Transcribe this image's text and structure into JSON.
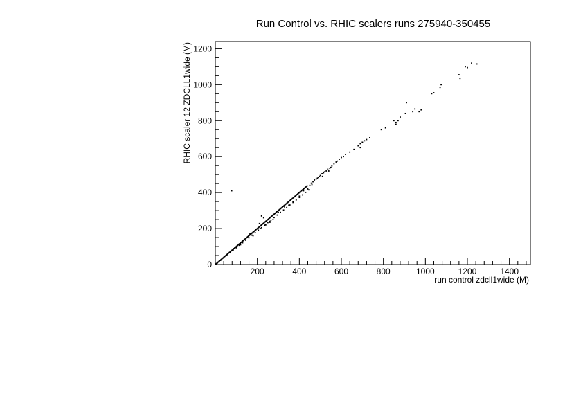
{
  "chart_data": {
    "type": "scatter",
    "title": "Run Control vs. RHIC scalers runs 275940-350455",
    "xlabel": "run control zdcll1wide (M)",
    "ylabel": "RHIC scaler 12 ZDCLL1wide (M)",
    "xlim": [
      0,
      1500
    ],
    "ylim": [
      0,
      1240
    ],
    "x_ticks": [
      200,
      400,
      600,
      800,
      1000,
      1200,
      1400
    ],
    "x_tick_labels": [
      "200",
      "400",
      "600",
      "800",
      "1000",
      "1200",
      "1400"
    ],
    "y_ticks": [
      0,
      200,
      400,
      600,
      800,
      1000,
      1200
    ],
    "y_tick_labels": [
      "0",
      "200",
      "400",
      "600",
      "800",
      "1000",
      "1200"
    ],
    "grid": false,
    "legend": "none",
    "marker_color": "#000000",
    "series": [
      {
        "x": [
          2,
          5,
          8,
          11,
          14,
          17,
          20,
          23,
          26,
          29,
          32,
          35,
          38,
          41,
          44,
          47,
          50,
          53,
          56,
          59,
          62,
          65,
          68,
          71,
          74,
          77,
          80,
          83,
          86,
          89,
          92,
          95,
          98,
          101,
          104,
          107,
          110,
          113,
          116,
          119,
          122,
          125,
          128,
          131,
          134,
          137,
          140,
          143,
          146,
          149,
          152,
          155,
          158,
          161,
          164,
          167,
          170,
          173,
          176,
          179,
          182,
          185,
          188,
          191,
          194,
          197,
          200,
          203,
          206,
          209,
          212,
          215,
          218,
          221,
          224,
          227,
          230,
          233,
          236,
          239,
          242,
          245,
          248,
          251,
          254,
          257,
          260,
          263,
          266,
          269,
          272,
          275,
          278,
          281,
          284,
          287,
          290,
          293,
          296,
          299,
          302,
          305,
          308,
          311,
          314,
          317,
          320,
          323,
          326,
          329,
          332,
          335,
          338,
          341,
          344,
          347,
          350,
          353,
          356,
          359,
          362,
          365,
          368,
          371,
          374,
          377,
          380,
          383,
          386,
          389,
          392,
          395,
          398,
          401,
          404,
          407,
          410,
          413,
          416,
          419,
          422,
          425,
          428,
          431,
          434,
          437,
          10,
          25,
          40,
          55,
          70,
          85,
          100,
          115,
          130,
          145,
          160,
          175,
          190,
          205,
          220,
          235,
          250,
          265,
          280,
          295,
          310,
          325,
          340,
          355,
          370,
          385,
          400,
          415,
          430,
          445,
          450,
          457,
          465,
          472,
          480,
          486,
          490,
          495,
          500,
          508,
          515,
          520,
          528,
          535,
          545,
          550,
          555,
          565,
          575,
          580,
          590,
          600,
          610,
          620,
          640,
          660,
          680,
          690,
          700,
          710,
          720,
          735,
          790,
          810,
          850,
          860,
          870,
          880,
          905,
          910,
          940,
          950,
          970,
          980,
          1030,
          1040,
          1070,
          1075,
          1160,
          1165,
          1190,
          1200,
          1220,
          1245,
          78,
          220,
          230,
          210,
          165,
          215,
          180,
          260,
          300,
          330,
          400,
          420,
          540,
          510,
          700,
          860,
          690,
          120,
          240,
          260,
          275,
          310,
          350,
          370,
          440,
          460
        ],
        "y": [
          2,
          5,
          8,
          11,
          14,
          17,
          20,
          23,
          26,
          29,
          32,
          35,
          38,
          41,
          44,
          47,
          50,
          53,
          56,
          59,
          62,
          65,
          68,
          71,
          74,
          77,
          80,
          83,
          86,
          89,
          92,
          95,
          98,
          101,
          104,
          107,
          110,
          113,
          116,
          119,
          122,
          125,
          128,
          131,
          134,
          137,
          140,
          143,
          146,
          149,
          152,
          155,
          158,
          161,
          164,
          167,
          170,
          173,
          176,
          179,
          182,
          185,
          188,
          191,
          194,
          197,
          200,
          203,
          206,
          209,
          212,
          215,
          218,
          221,
          224,
          227,
          230,
          233,
          236,
          239,
          242,
          245,
          248,
          251,
          254,
          257,
          260,
          263,
          266,
          269,
          272,
          275,
          278,
          281,
          284,
          287,
          290,
          293,
          296,
          299,
          302,
          305,
          308,
          311,
          314,
          317,
          320,
          323,
          326,
          329,
          332,
          335,
          338,
          341,
          344,
          347,
          350,
          353,
          356,
          359,
          362,
          365,
          368,
          371,
          374,
          377,
          380,
          383,
          386,
          389,
          392,
          395,
          398,
          401,
          404,
          407,
          410,
          413,
          416,
          419,
          422,
          425,
          428,
          431,
          434,
          437,
          9,
          23,
          37,
          51,
          65,
          79,
          93,
          107,
          121,
          135,
          149,
          163,
          177,
          191,
          205,
          219,
          233,
          247,
          261,
          275,
          289,
          303,
          317,
          331,
          345,
          359,
          373,
          387,
          401,
          415,
          440,
          452,
          460,
          470,
          475,
          480,
          485,
          490,
          495,
          505,
          510,
          515,
          520,
          530,
          535,
          540,
          548,
          560,
          570,
          575,
          585,
          595,
          600,
          612,
          625,
          640,
          660,
          672,
          680,
          688,
          695,
          705,
          750,
          760,
          800,
          790,
          800,
          820,
          840,
          900,
          850,
          865,
          850,
          860,
          950,
          955,
          985,
          1000,
          1055,
          1035,
          1100,
          1095,
          1120,
          1115,
          410,
          270,
          260,
          228,
          170,
          200,
          160,
          240,
          290,
          320,
          380,
          410,
          520,
          490,
          680,
          780,
          650,
          110,
          220,
          235,
          250,
          290,
          330,
          350,
          420,
          445
        ]
      }
    ]
  }
}
